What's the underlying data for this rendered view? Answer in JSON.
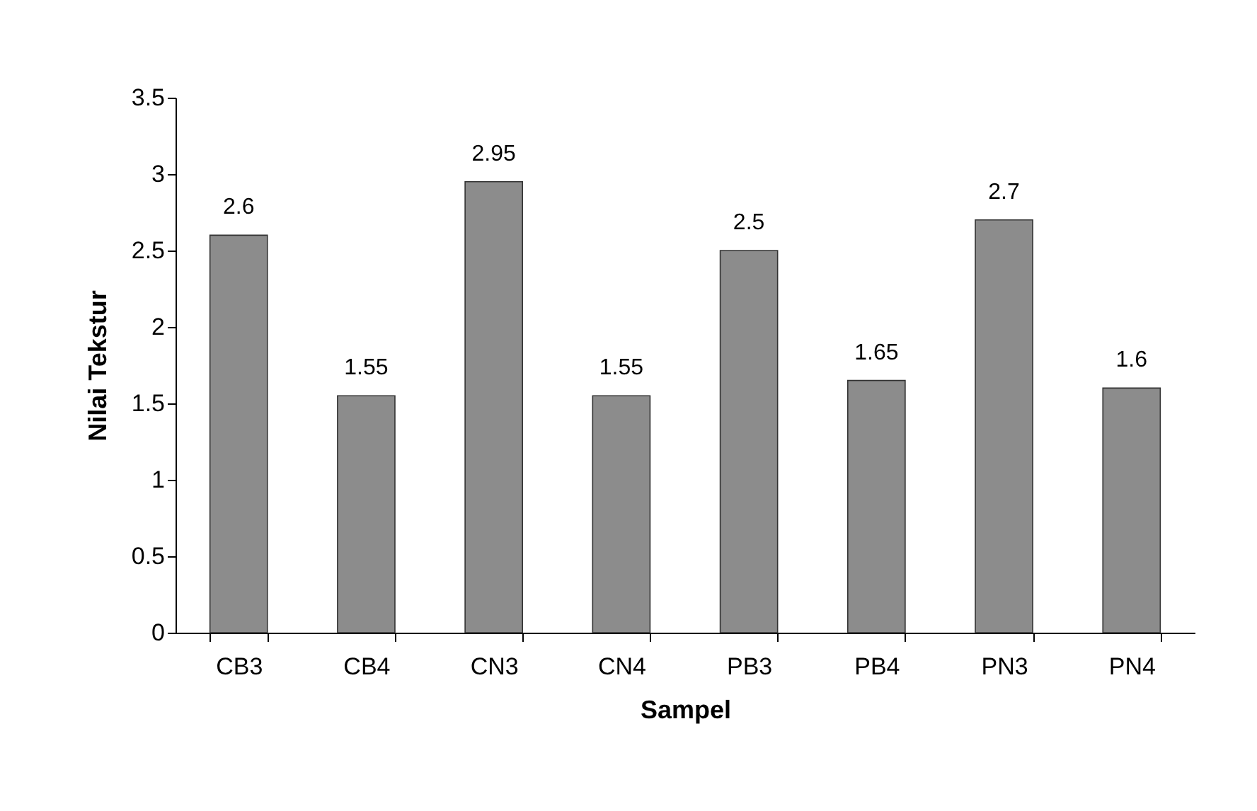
{
  "chart_data": {
    "type": "bar",
    "xlabel": "Sampel",
    "ylabel": "Nilai Tekstur",
    "categories": [
      "CB3",
      "CB4",
      "CN3",
      "CN4",
      "PB3",
      "PB4",
      "PN3",
      "PN4"
    ],
    "values": [
      2.6,
      1.55,
      2.95,
      1.55,
      2.5,
      1.65,
      2.7,
      1.6
    ],
    "color": "#8c8c8c",
    "ylim": [
      0,
      3.5
    ],
    "yticks": [
      0,
      0.5,
      1,
      1.5,
      2,
      2.5,
      3,
      3.5
    ],
    "data_labels": true
  }
}
